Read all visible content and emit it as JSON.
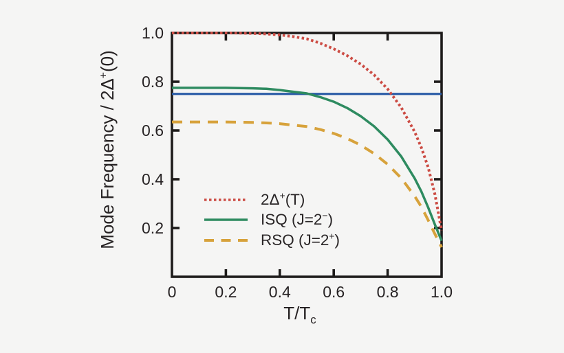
{
  "figure": {
    "background_color": "#f5f5f4",
    "frame_color": "#1d1b1a",
    "text_color": "#262223"
  },
  "axes": {
    "y": {
      "label_pre": "Mode Frequency / 2Δ",
      "label_sup": "+",
      "label_post": "(0)"
    },
    "x": {
      "label_pre": "T/T",
      "label_sub": "c"
    }
  },
  "legend": {
    "items": [
      {
        "pre": "2Δ",
        "sup": "+",
        "post": "(T)",
        "color": "#cc4c44",
        "style": "dotted"
      },
      {
        "pre": "ISQ (J=2",
        "sup": "−",
        "post": ")",
        "color": "#2e8b60",
        "style": "solid"
      },
      {
        "pre": "RSQ (J=2",
        "sup": "+",
        "post": ")",
        "color": "#d7a23b",
        "style": "dashed"
      }
    ]
  },
  "chart_data": {
    "type": "line",
    "title": "",
    "xlabel": "T/Tc",
    "ylabel": "Mode Frequency / 2Δ+(0)",
    "xlim": [
      0,
      1.0
    ],
    "ylim": [
      0,
      1.0
    ],
    "grid": false,
    "legend_position": "lower-left-inside",
    "x_tick_values": [
      0,
      0.2,
      0.4,
      0.6,
      0.8,
      1.0
    ],
    "x_tick_labels": [
      "0",
      "0.2",
      "0.4",
      "0.6",
      "0.8",
      "1.0"
    ],
    "y_tick_values": [
      0.2,
      0.4,
      0.6,
      0.8,
      1.0
    ],
    "y_tick_labels": [
      "0.2",
      "0.4",
      "0.6",
      "0.8",
      "1.0"
    ],
    "t": [
      0,
      0.05,
      0.1,
      0.15,
      0.2,
      0.25,
      0.3,
      0.35,
      0.4,
      0.45,
      0.5,
      0.55,
      0.6,
      0.65,
      0.7,
      0.75,
      0.8,
      0.85,
      0.9,
      0.925,
      0.95,
      0.975,
      1.0
    ],
    "series": [
      {
        "name": "2Δ+(T)",
        "style": "dotted",
        "color": "#cc4c44",
        "values": [
          1.0,
          1.0,
          1.0,
          1.0,
          1.0,
          0.9995,
          0.998,
          0.996,
          0.992,
          0.985,
          0.976,
          0.958,
          0.935,
          0.907,
          0.872,
          0.828,
          0.77,
          0.695,
          0.595,
          0.53,
          0.45,
          0.34,
          0.19
        ]
      },
      {
        "name": "ISQ (J=2−)",
        "style": "solid",
        "color": "#2e8b60",
        "values": [
          0.775,
          0.775,
          0.775,
          0.775,
          0.775,
          0.774,
          0.773,
          0.771,
          0.766,
          0.759,
          0.752,
          0.737,
          0.718,
          0.692,
          0.659,
          0.617,
          0.563,
          0.494,
          0.404,
          0.35,
          0.285,
          0.215,
          0.148
        ]
      },
      {
        "name": "RSQ (J=2+)",
        "style": "dashed",
        "color": "#d7a23b",
        "values": [
          0.635,
          0.635,
          0.635,
          0.635,
          0.635,
          0.634,
          0.633,
          0.631,
          0.628,
          0.622,
          0.616,
          0.604,
          0.588,
          0.567,
          0.54,
          0.505,
          0.461,
          0.405,
          0.331,
          0.287,
          0.233,
          0.176,
          0.121
        ]
      }
    ],
    "reference_line": {
      "value": 0.75,
      "color": "#2b5ca7",
      "style": "solid"
    }
  }
}
